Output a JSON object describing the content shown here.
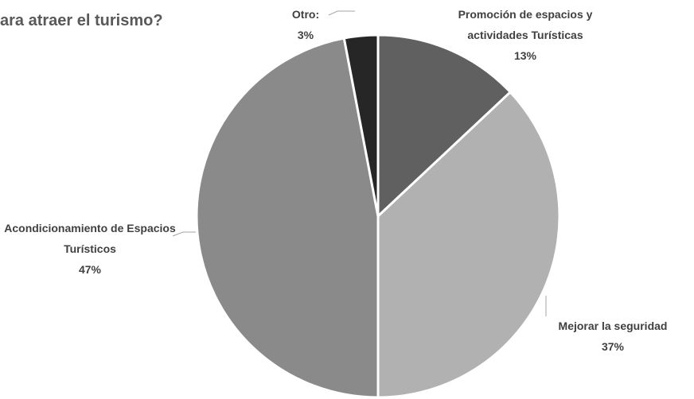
{
  "chart_data": {
    "type": "pie",
    "title": "ara atraer el turismo?",
    "categories": [
      "Promoción de espacios y actividades Turísticas",
      "Mejorar la seguridad",
      "Acondicionamiento de Espacios Turísticos",
      "Otro:"
    ],
    "values": [
      13,
      37,
      47,
      3
    ],
    "value_labels": [
      "13%",
      "37%",
      "47%",
      "3%"
    ],
    "colors": [
      "#606060",
      "#b1b1b1",
      "#8a8a8a",
      "#262626"
    ]
  }
}
